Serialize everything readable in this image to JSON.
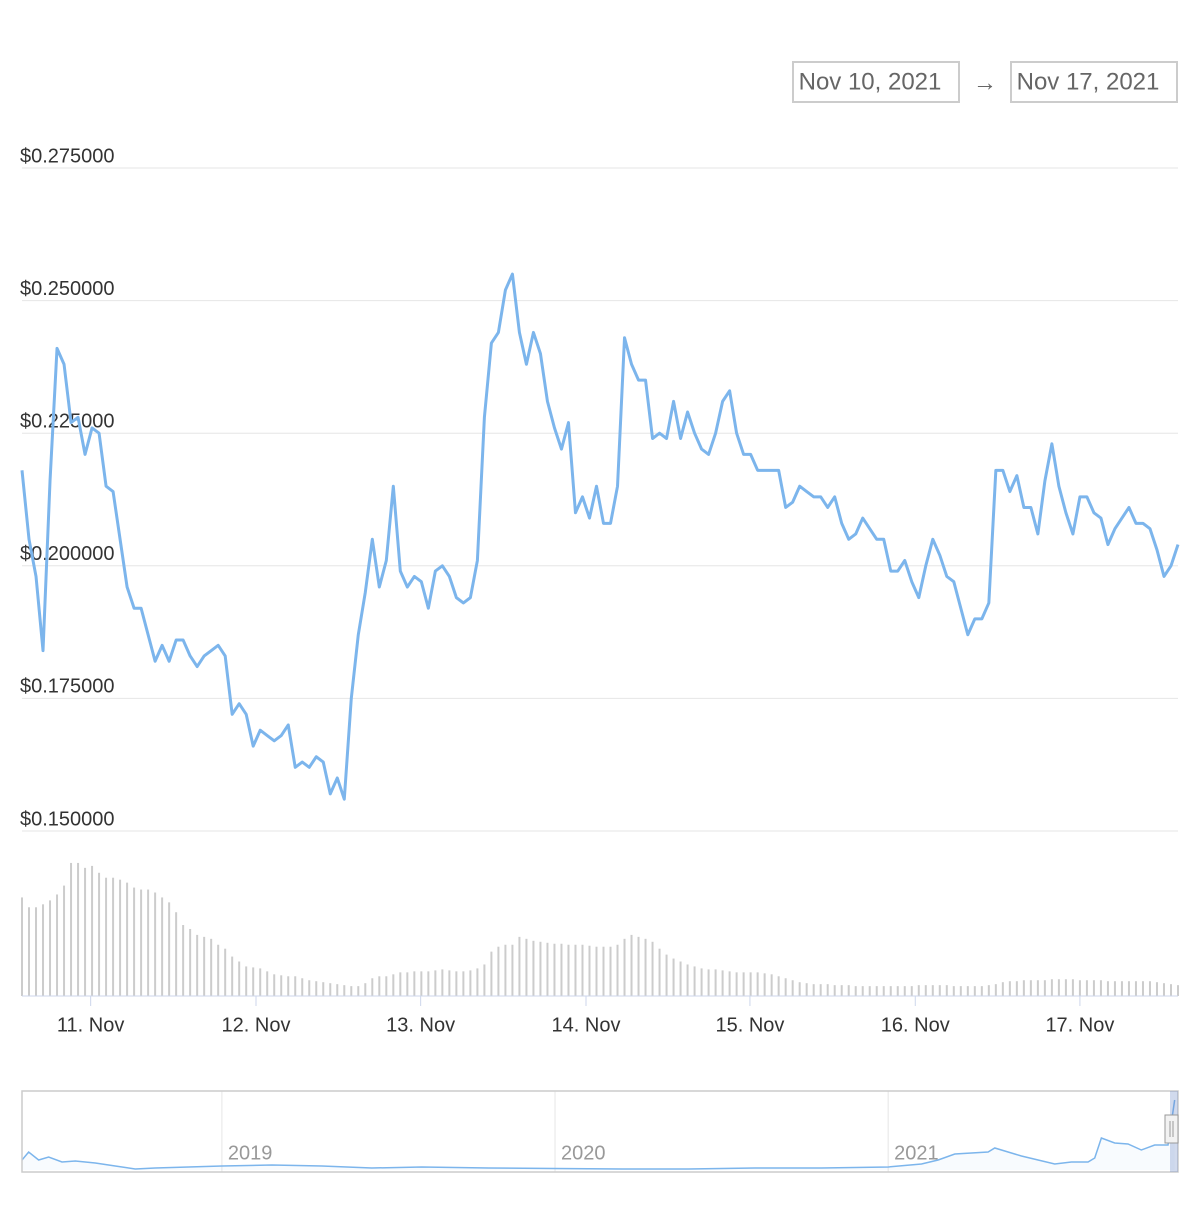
{
  "range": {
    "from": "Nov 10, 2021",
    "separator": "→",
    "to": "Nov 17, 2021"
  },
  "chart_data": {
    "type": "line",
    "series": [
      {
        "color": "#7cb5ec",
        "values": [
          0.218,
          0.205,
          0.198,
          0.184,
          0.216,
          0.241,
          0.238,
          0.227,
          0.228,
          0.221,
          0.226,
          0.225,
          0.215,
          0.214,
          0.205,
          0.196,
          0.192,
          0.192,
          0.187,
          0.182,
          0.185,
          0.182,
          0.186,
          0.186,
          0.183,
          0.181,
          0.183,
          0.184,
          0.185,
          0.183,
          0.172,
          0.174,
          0.172,
          0.166,
          0.169,
          0.168,
          0.167,
          0.168,
          0.17,
          0.162,
          0.163,
          0.162,
          0.164,
          0.163,
          0.157,
          0.16,
          0.156,
          0.175,
          0.187,
          0.195,
          0.205,
          0.196,
          0.201,
          0.215,
          0.199,
          0.196,
          0.198,
          0.197,
          0.192,
          0.199,
          0.2,
          0.198,
          0.194,
          0.193,
          0.194,
          0.201,
          0.228,
          0.242,
          0.244,
          0.252,
          0.255,
          0.244,
          0.238,
          0.244,
          0.24,
          0.231,
          0.226,
          0.222,
          0.227,
          0.21,
          0.213,
          0.209,
          0.215,
          0.208,
          0.208,
          0.215,
          0.243,
          0.238,
          0.235,
          0.235,
          0.224,
          0.225,
          0.224,
          0.231,
          0.224,
          0.229,
          0.225,
          0.222,
          0.221,
          0.225,
          0.231,
          0.233,
          0.225,
          0.221,
          0.221,
          0.218,
          0.218,
          0.218,
          0.218,
          0.211,
          0.212,
          0.215,
          0.214,
          0.213,
          0.213,
          0.211,
          0.213,
          0.208,
          0.205,
          0.206,
          0.209,
          0.207,
          0.205,
          0.205,
          0.199,
          0.199,
          0.201,
          0.197,
          0.194,
          0.2,
          0.205,
          0.202,
          0.198,
          0.197,
          0.192,
          0.187,
          0.19,
          0.19,
          0.193,
          0.218,
          0.218,
          0.214,
          0.217,
          0.211,
          0.211,
          0.206,
          0.216,
          0.223,
          0.215,
          0.21,
          0.206,
          0.213,
          0.213,
          0.21,
          0.209,
          0.204,
          0.207,
          0.209,
          0.211,
          0.208,
          0.208,
          0.207,
          0.203,
          0.198,
          0.2,
          0.204
        ]
      }
    ],
    "xlim": [
      0,
      165
    ],
    "xticks": [
      {
        "value": 9.8,
        "label": "11. Nov"
      },
      {
        "value": 33.4,
        "label": "12. Nov"
      },
      {
        "value": 56.9,
        "label": "13. Nov"
      },
      {
        "value": 80.5,
        "label": "14. Nov"
      },
      {
        "value": 103.9,
        "label": "15. Nov"
      },
      {
        "value": 127.5,
        "label": "16. Nov"
      },
      {
        "value": 151,
        "label": "17. Nov"
      }
    ],
    "ylim": [
      0.15,
      0.275
    ],
    "yticks": [
      {
        "value": 0.275,
        "label": "$0.275000"
      },
      {
        "value": 0.25,
        "label": "$0.250000"
      },
      {
        "value": 0.225,
        "label": "$0.225000"
      },
      {
        "value": 0.2,
        "label": "$0.200000"
      },
      {
        "value": 0.175,
        "label": "$0.175000"
      },
      {
        "value": 0.15,
        "label": "$0.150000"
      }
    ],
    "grid": true,
    "volume": {
      "type": "column",
      "color": "#cccccc",
      "ylim": [
        0,
        140
      ],
      "values": [
        100,
        90,
        90,
        93,
        97,
        103,
        112,
        135,
        135,
        130,
        132,
        125,
        120,
        120,
        118,
        115,
        110,
        108,
        108,
        105,
        100,
        95,
        85,
        72,
        68,
        62,
        60,
        58,
        52,
        48,
        40,
        35,
        30,
        29,
        28,
        25,
        22,
        21,
        20,
        20,
        18,
        16,
        15,
        14,
        13,
        12,
        11,
        10,
        10,
        13,
        18,
        20,
        20,
        22,
        24,
        24,
        25,
        25,
        25,
        26,
        27,
        26,
        25,
        25,
        26,
        28,
        32,
        45,
        50,
        52,
        52,
        60,
        58,
        56,
        55,
        54,
        53,
        53,
        52,
        52,
        52,
        51,
        50,
        50,
        50,
        52,
        58,
        62,
        60,
        58,
        55,
        48,
        42,
        38,
        35,
        32,
        30,
        28,
        27,
        27,
        26,
        25,
        24,
        24,
        24,
        24,
        23,
        22,
        20,
        18,
        16,
        14,
        13,
        12,
        12,
        12,
        11,
        11,
        11,
        10,
        10,
        10,
        10,
        10,
        10,
        10,
        10,
        10,
        11,
        11,
        11,
        11,
        11,
        10,
        10,
        10,
        10,
        10,
        11,
        12,
        14,
        15,
        15,
        16,
        16,
        16,
        16,
        17,
        17,
        17,
        17,
        16,
        16,
        16,
        16,
        15,
        15,
        15,
        15,
        15,
        15,
        15,
        14,
        13,
        12,
        11
      ]
    },
    "navigator": {
      "type": "line",
      "color": "#7cb5ec",
      "x": [
        2018.4,
        2018.42,
        2018.45,
        2018.48,
        2018.52,
        2018.56,
        2018.62,
        2018.68,
        2018.74,
        2018.8,
        2018.9,
        2019.0,
        2019.15,
        2019.3,
        2019.45,
        2019.6,
        2019.8,
        2020.0,
        2020.2,
        2020.4,
        2020.6,
        2020.8,
        2021.0,
        2021.1,
        2021.15,
        2021.2,
        2021.3,
        2021.32,
        2021.4,
        2021.45,
        2021.5,
        2021.55,
        2021.6,
        2021.62,
        2021.64,
        2021.68,
        2021.72,
        2021.76,
        2021.8,
        2021.84,
        2021.86
      ],
      "values": [
        10,
        18,
        10,
        13,
        8,
        9,
        7,
        4,
        1,
        2,
        3,
        4,
        5,
        4,
        2,
        3,
        2,
        1.5,
        1,
        1,
        2,
        2,
        3,
        6,
        10,
        16,
        18,
        22,
        14,
        10,
        6,
        8,
        8,
        12,
        32,
        27,
        26,
        20,
        25,
        25,
        70
      ],
      "xlim": [
        2018.4,
        2021.87
      ],
      "ylim": [
        0,
        78
      ],
      "xticks": [
        2019,
        2020,
        2021
      ]
    }
  }
}
